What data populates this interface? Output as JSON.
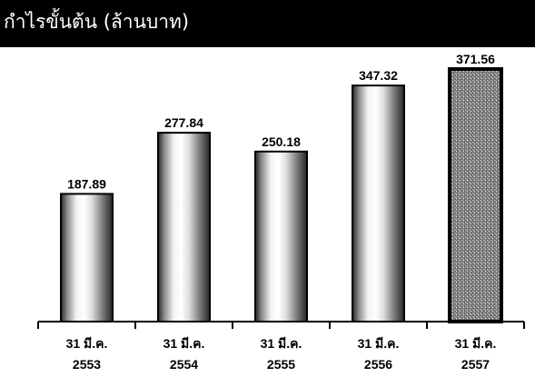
{
  "chart_data": {
    "type": "bar",
    "title": "กำไรขั้นต้น (ล้านบาท)",
    "categories": [
      [
        "31 มี.ค.",
        "2553"
      ],
      [
        "31 มี.ค.",
        "2554"
      ],
      [
        "31 มี.ค.",
        "2555"
      ],
      [
        "31 มี.ค.",
        "2556"
      ],
      [
        "31 มี.ค.",
        "2557"
      ]
    ],
    "values": [
      187.89,
      277.84,
      250.18,
      347.32,
      371.56
    ],
    "value_labels": [
      "187.89",
      "277.84",
      "250.18",
      "347.32",
      "371.56"
    ],
    "xlabel": "",
    "ylabel": "",
    "ylim": [
      0,
      371.56
    ],
    "grid": false,
    "legend": "none",
    "highlight_index": 4
  },
  "colors": {
    "title_bar": "#000000",
    "title_text": "#ffffff",
    "bar_edge": "#000000",
    "bar_light": "#ffffff",
    "bar_dark": "#2e2e2e",
    "highlight_fill": "#7a7a7a",
    "axis": "#000000"
  }
}
